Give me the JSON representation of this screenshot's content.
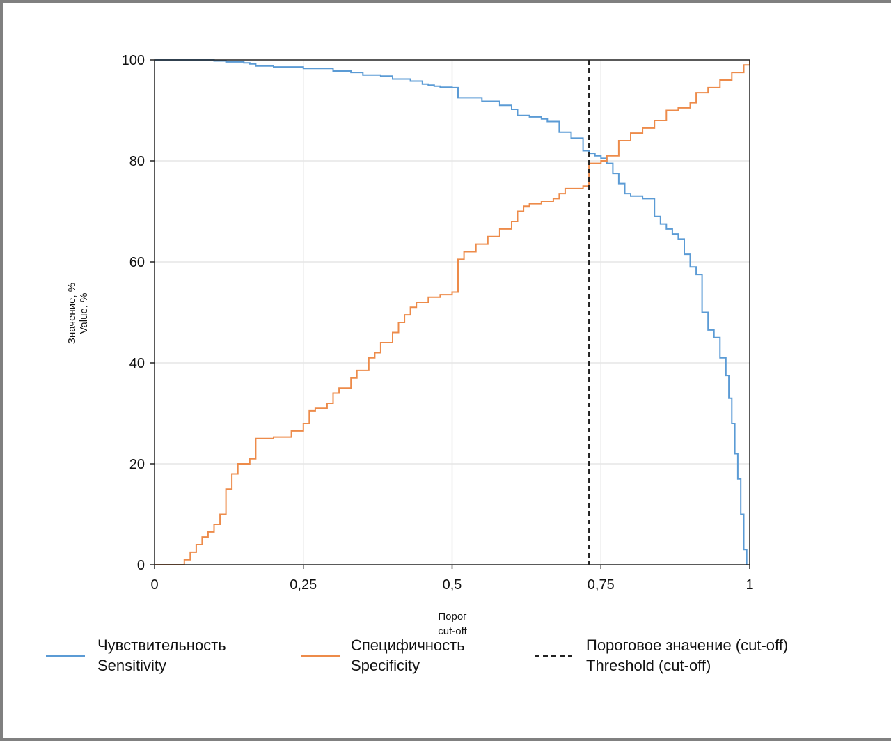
{
  "chart_data": {
    "type": "line",
    "title": "",
    "xlabel": [
      "Порог",
      "cut-off"
    ],
    "ylabel": [
      "Значение, %",
      "Value, %"
    ],
    "xlim": [
      0,
      1
    ],
    "ylim": [
      0,
      100
    ],
    "x_ticks": [
      0,
      0.25,
      0.5,
      0.75,
      1
    ],
    "x_tick_labels": [
      "0",
      "0,25",
      "0,5",
      "0,75",
      "1"
    ],
    "y_ticks": [
      0,
      20,
      40,
      60,
      80,
      100
    ],
    "y_tick_labels": [
      "0",
      "20",
      "40",
      "60",
      "80",
      "100"
    ],
    "grid": true,
    "legend_position": "bottom",
    "colors": {
      "sensitivity": "#5b9bd5",
      "specificity": "#ed8b4a",
      "threshold": "#222222",
      "grid": "#e6e6e6"
    },
    "series": [
      {
        "key": "sensitivity",
        "legend": [
          "Чувствительность",
          "Sensitivity"
        ],
        "x": [
          0,
          0.05,
          0.1,
          0.12,
          0.15,
          0.16,
          0.17,
          0.2,
          0.25,
          0.3,
          0.33,
          0.35,
          0.38,
          0.4,
          0.43,
          0.45,
          0.46,
          0.47,
          0.48,
          0.5,
          0.51,
          0.55,
          0.58,
          0.6,
          0.61,
          0.63,
          0.65,
          0.66,
          0.68,
          0.7,
          0.72,
          0.73,
          0.74,
          0.75,
          0.76,
          0.77,
          0.78,
          0.79,
          0.8,
          0.82,
          0.84,
          0.85,
          0.86,
          0.87,
          0.88,
          0.89,
          0.9,
          0.91,
          0.92,
          0.93,
          0.94,
          0.95,
          0.96,
          0.965,
          0.97,
          0.975,
          0.98,
          0.985,
          0.99,
          0.995
        ],
        "y": [
          100,
          100,
          99.8,
          99.6,
          99.4,
          99.2,
          98.8,
          98.6,
          98.3,
          97.8,
          97.5,
          97.0,
          96.8,
          96.2,
          95.8,
          95.2,
          95.0,
          94.8,
          94.6,
          94.5,
          92.5,
          91.8,
          91.0,
          90.2,
          89.0,
          88.7,
          88.3,
          87.8,
          85.7,
          84.5,
          82.0,
          81.5,
          81.0,
          80.5,
          79.5,
          77.5,
          75.5,
          73.5,
          73.0,
          72.5,
          69.0,
          67.5,
          66.5,
          65.5,
          64.5,
          61.5,
          59.0,
          57.5,
          50.0,
          46.5,
          45.0,
          41.0,
          37.5,
          33.0,
          28.0,
          22.0,
          17.0,
          10.0,
          3.0,
          0
        ]
      },
      {
        "key": "specificity",
        "legend": [
          "Специфичность",
          "Specificity"
        ],
        "x": [
          0,
          0.04,
          0.05,
          0.06,
          0.07,
          0.08,
          0.09,
          0.1,
          0.11,
          0.12,
          0.13,
          0.14,
          0.16,
          0.17,
          0.2,
          0.23,
          0.25,
          0.26,
          0.27,
          0.29,
          0.3,
          0.31,
          0.33,
          0.34,
          0.36,
          0.37,
          0.38,
          0.4,
          0.41,
          0.42,
          0.43,
          0.44,
          0.46,
          0.48,
          0.5,
          0.51,
          0.52,
          0.54,
          0.56,
          0.58,
          0.6,
          0.61,
          0.62,
          0.63,
          0.65,
          0.67,
          0.68,
          0.69,
          0.72,
          0.73,
          0.75,
          0.76,
          0.78,
          0.8,
          0.82,
          0.84,
          0.86,
          0.88,
          0.9,
          0.91,
          0.93,
          0.95,
          0.97,
          0.99,
          1.0
        ],
        "y": [
          0,
          0,
          1.0,
          2.5,
          4.0,
          5.5,
          6.5,
          8.0,
          10.0,
          15.0,
          18.0,
          20.0,
          21.0,
          25.0,
          25.3,
          26.5,
          28.0,
          30.5,
          31.0,
          32.0,
          34.0,
          35.0,
          37.0,
          38.5,
          41.0,
          42.0,
          44.0,
          46.0,
          48.0,
          49.5,
          51.0,
          52.0,
          53.0,
          53.5,
          54.0,
          60.5,
          62.0,
          63.5,
          65.0,
          66.5,
          68.0,
          70.0,
          71.0,
          71.5,
          72.0,
          72.5,
          73.5,
          74.5,
          75.0,
          79.5,
          80.0,
          81.0,
          84.0,
          85.5,
          86.5,
          88.0,
          90.0,
          90.5,
          91.5,
          93.5,
          94.5,
          96.0,
          97.5,
          99.0,
          100
        ]
      }
    ],
    "threshold": {
      "x": 0.73,
      "legend": [
        "Пороговое значение (cut-off)",
        "Threshold  (cut-off)"
      ]
    }
  }
}
